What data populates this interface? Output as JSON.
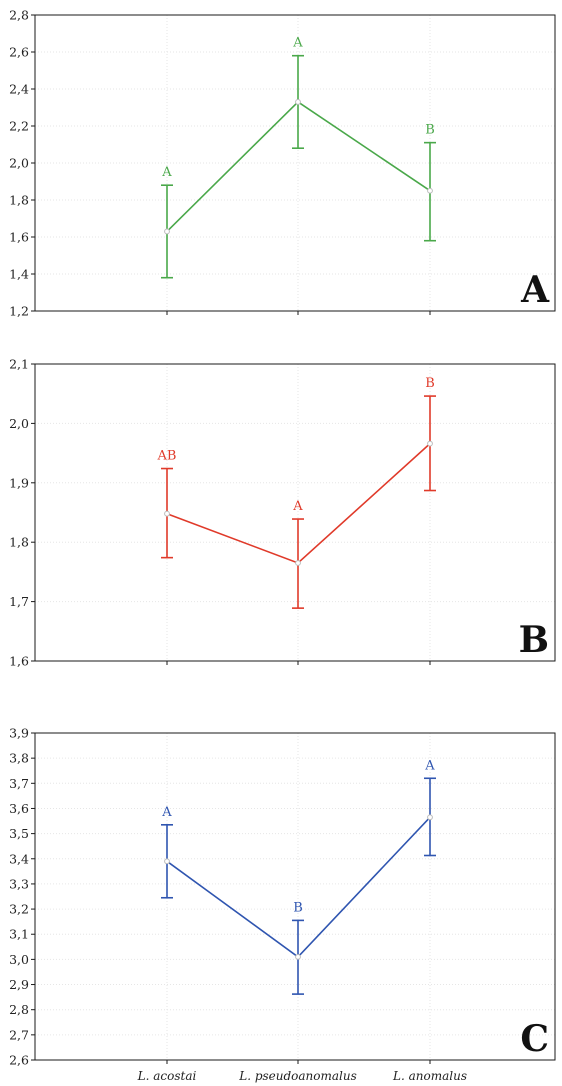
{
  "chart_data": [
    {
      "type": "line",
      "panel_label": "A",
      "color": "#4aa84a",
      "categories": [
        "L. acostai",
        "L. pseudoanomalus",
        "L. anomalus"
      ],
      "ylim": [
        1.2,
        2.8
      ],
      "yticks": [
        "1,2",
        "1,4",
        "1,6",
        "1,8",
        "2,0",
        "2,2",
        "2,4",
        "2,6",
        "2,8"
      ],
      "series": [
        {
          "values": [
            1.63,
            2.33,
            1.85
          ],
          "lower": [
            1.38,
            2.08,
            1.58
          ],
          "upper": [
            1.88,
            2.58,
            2.11
          ],
          "group_labels": [
            "A",
            "A",
            "B"
          ]
        }
      ]
    },
    {
      "type": "line",
      "panel_label": "B",
      "color": "#e03a2a",
      "categories": [
        "L. acostai",
        "L. pseudoanomalus",
        "L. anomalus"
      ],
      "ylim": [
        1.6,
        2.1
      ],
      "yticks": [
        "1,6",
        "1,7",
        "1,8",
        "1,9",
        "2,0",
        "2,1"
      ],
      "series": [
        {
          "values": [
            1.848,
            1.765,
            1.966
          ],
          "lower": [
            1.774,
            1.689,
            1.887
          ],
          "upper": [
            1.924,
            1.839,
            2.046
          ],
          "group_labels": [
            "AB",
            "A",
            "B"
          ]
        }
      ]
    },
    {
      "type": "line",
      "panel_label": "C",
      "color": "#2f55b0",
      "categories": [
        "L. acostai",
        "L. pseudoanomalus",
        "L. anomalus"
      ],
      "ylim": [
        2.6,
        3.9
      ],
      "yticks": [
        "2,6",
        "2,7",
        "2,8",
        "2,9",
        "3,0",
        "3,1",
        "3,2",
        "3,3",
        "3,4",
        "3,5",
        "3,6",
        "3,7",
        "3,8",
        "3,9"
      ],
      "show_x_labels": true,
      "series": [
        {
          "values": [
            3.39,
            3.01,
            3.565
          ],
          "lower": [
            3.245,
            2.862,
            3.413
          ],
          "upper": [
            3.535,
            3.155,
            3.72
          ],
          "group_labels": [
            "A",
            "B",
            "A"
          ]
        }
      ]
    }
  ]
}
